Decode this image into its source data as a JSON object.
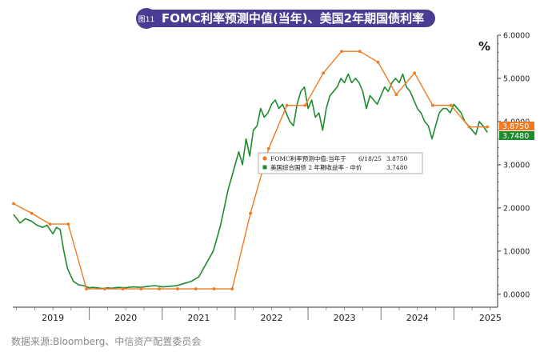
{
  "header": {
    "badge": "图11",
    "title": "FOMC利率预测中值(当年)、美国2年期国债利率"
  },
  "footer": {
    "source": "数据来源:Bloomberg、中信资产配置委员会"
  },
  "colors": {
    "fomc": "#f07a22",
    "treasury": "#1e8c2e",
    "badge_bg": "#4a3c93"
  },
  "chart_data": {
    "type": "line",
    "ylabel": "%",
    "ylim": [
      -0.3,
      6.0
    ],
    "y_ticks": [
      "0.0000",
      "1.0000",
      "2.0000",
      "3.0000",
      "4.0000",
      "5.0000",
      "6.0000"
    ],
    "x_ticks": [
      "2019",
      "2020",
      "2021",
      "2022",
      "2023",
      "2024",
      "2025"
    ],
    "x_range": [
      2018.95,
      2025.6
    ],
    "grid": false,
    "legend": {
      "position": "center-right",
      "entries": [
        {
          "series": "fomc",
          "label": "FOMC利率预测中值:当年于",
          "date": "6/18/25",
          "value": "3.8750"
        },
        {
          "series": "treasury",
          "label": "美国综合国债 2 年期收益率 - 中价",
          "date": "",
          "value": "3.7480"
        }
      ]
    },
    "last_value_labels": {
      "fomc": "3.8750",
      "treasury": "3.7480"
    },
    "series": [
      {
        "key": "fomc",
        "x": [
          2018.96,
          2019.21,
          2019.46,
          2019.71,
          2019.96,
          2020.21,
          2020.46,
          2020.71,
          2020.96,
          2021.21,
          2021.46,
          2021.71,
          2021.96,
          2022.21,
          2022.46,
          2022.71,
          2022.96,
          2023.21,
          2023.46,
          2023.71,
          2023.96,
          2024.21,
          2024.46,
          2024.71,
          2024.96,
          2025.21,
          2025.46
        ],
        "values": [
          2.1,
          1.875,
          1.625,
          1.625,
          0.125,
          0.125,
          0.125,
          0.125,
          0.125,
          0.125,
          0.125,
          0.125,
          0.125,
          1.875,
          3.375,
          4.375,
          4.375,
          5.125,
          5.625,
          5.625,
          5.375,
          4.625,
          5.125,
          4.375,
          4.375,
          3.875,
          3.875
        ]
      },
      {
        "key": "treasury",
        "x": [
          2018.96,
          2019.05,
          2019.12,
          2019.2,
          2019.28,
          2019.36,
          2019.42,
          2019.5,
          2019.55,
          2019.6,
          2019.65,
          2019.7,
          2019.78,
          2019.85,
          2019.92,
          2020.0,
          2020.05,
          2020.1,
          2020.15,
          2020.2,
          2020.25,
          2020.3,
          2020.4,
          2020.5,
          2020.6,
          2020.7,
          2020.8,
          2020.9,
          2021.0,
          2021.1,
          2021.2,
          2021.3,
          2021.4,
          2021.5,
          2021.6,
          2021.7,
          2021.75,
          2021.8,
          2021.85,
          2021.9,
          2021.95,
          2022.0,
          2022.05,
          2022.1,
          2022.15,
          2022.2,
          2022.25,
          2022.3,
          2022.35,
          2022.4,
          2022.45,
          2022.5,
          2022.55,
          2022.6,
          2022.65,
          2022.7,
          2022.75,
          2022.8,
          2022.85,
          2022.9,
          2022.95,
          2023.0,
          2023.05,
          2023.1,
          2023.15,
          2023.2,
          2023.25,
          2023.3,
          2023.35,
          2023.4,
          2023.45,
          2023.5,
          2023.55,
          2023.6,
          2023.65,
          2023.7,
          2023.75,
          2023.8,
          2023.85,
          2023.9,
          2023.95,
          2024.0,
          2024.05,
          2024.1,
          2024.15,
          2024.2,
          2024.25,
          2024.3,
          2024.35,
          2024.4,
          2024.45,
          2024.5,
          2024.55,
          2024.6,
          2024.65,
          2024.7,
          2024.75,
          2024.8,
          2024.85,
          2024.9,
          2024.95,
          2025.0,
          2025.05,
          2025.1,
          2025.15,
          2025.2,
          2025.25,
          2025.3,
          2025.35,
          2025.4,
          2025.46
        ],
        "values": [
          1.85,
          1.65,
          1.75,
          1.7,
          1.6,
          1.55,
          1.6,
          1.4,
          1.55,
          1.5,
          1.0,
          0.6,
          0.3,
          0.22,
          0.2,
          0.15,
          0.16,
          0.15,
          0.14,
          0.13,
          0.15,
          0.14,
          0.16,
          0.15,
          0.17,
          0.16,
          0.18,
          0.2,
          0.17,
          0.18,
          0.2,
          0.25,
          0.3,
          0.4,
          0.7,
          1.0,
          1.3,
          1.6,
          2.0,
          2.4,
          2.7,
          3.0,
          3.3,
          3.0,
          3.6,
          3.2,
          3.8,
          3.9,
          4.3,
          4.1,
          4.2,
          4.4,
          4.5,
          4.3,
          4.4,
          4.2,
          4.0,
          3.9,
          4.4,
          4.7,
          4.8,
          4.3,
          4.5,
          4.1,
          4.2,
          3.8,
          4.3,
          4.6,
          4.7,
          4.8,
          5.0,
          4.9,
          5.1,
          4.9,
          5.0,
          4.9,
          4.7,
          4.3,
          4.6,
          4.5,
          4.4,
          4.6,
          4.8,
          4.7,
          4.9,
          5.0,
          4.9,
          5.1,
          4.8,
          4.7,
          4.5,
          4.3,
          4.2,
          4.0,
          3.9,
          3.6,
          3.9,
          4.2,
          4.3,
          4.3,
          4.2,
          4.4,
          4.3,
          4.2,
          4.0,
          3.9,
          3.8,
          3.7,
          4.0,
          3.9,
          3.748
        ]
      }
    ]
  }
}
